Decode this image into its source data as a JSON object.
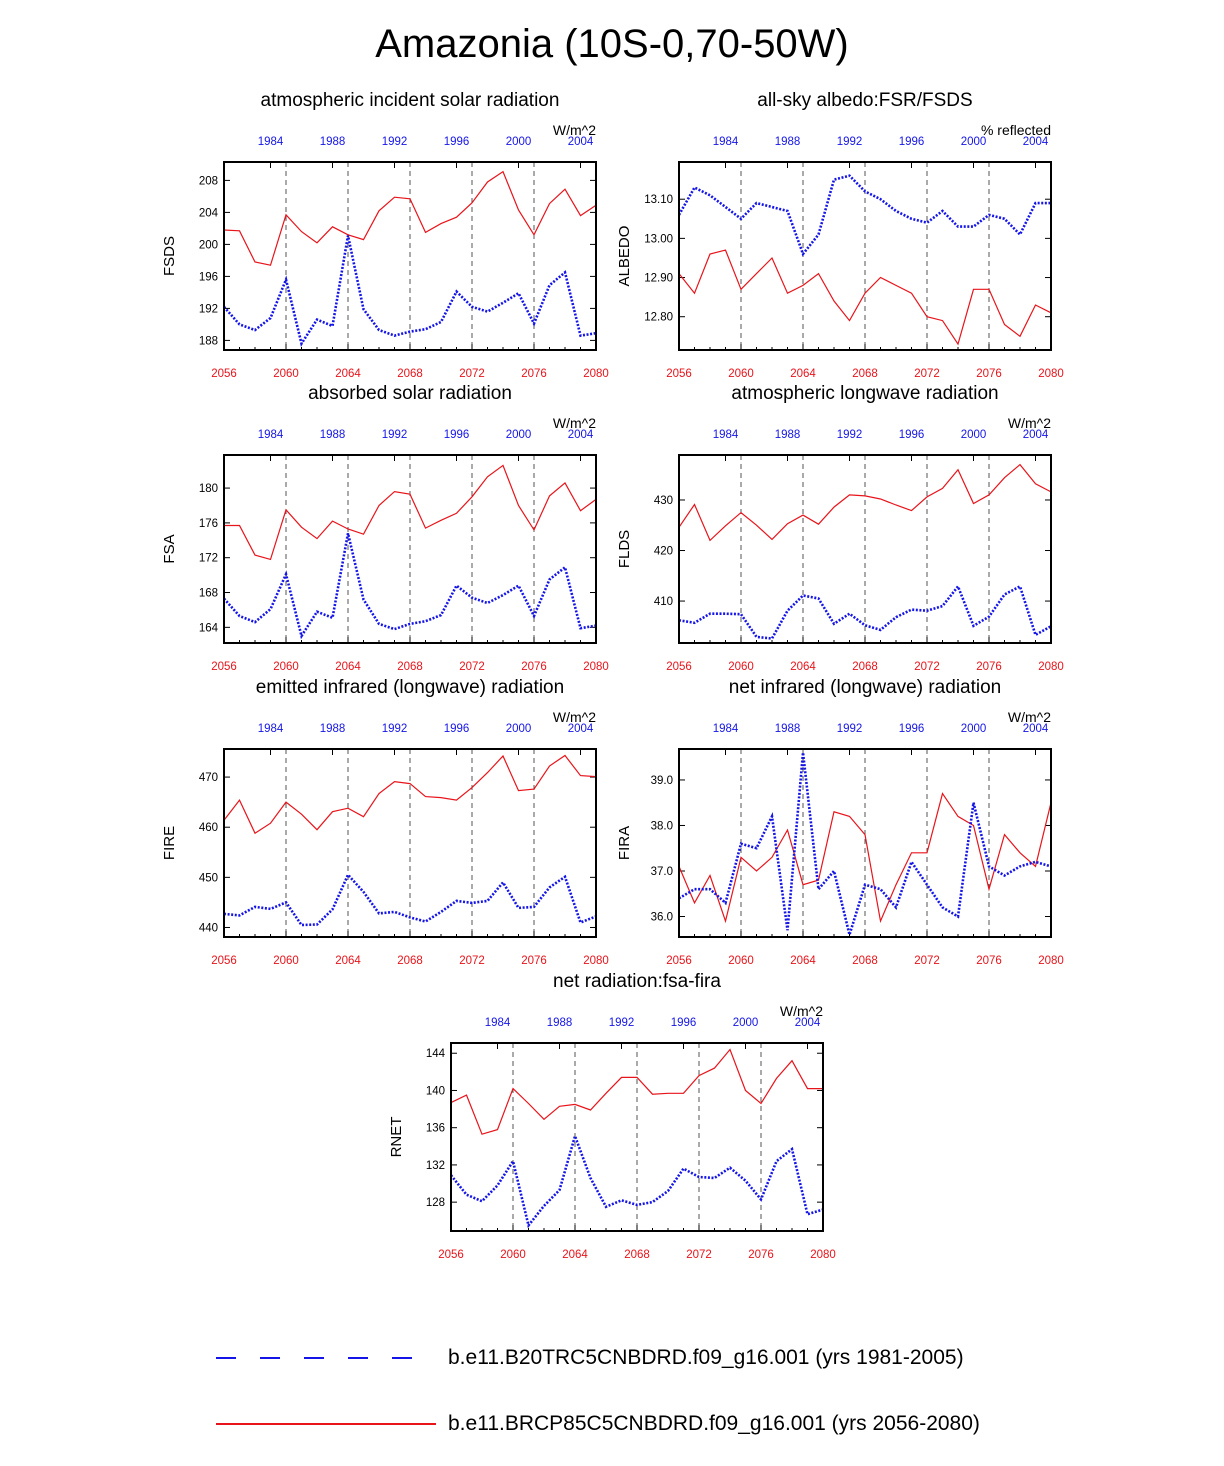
{
  "title": "Amazonia (10S-0,70-50W)",
  "colors": {
    "future": "#e8141b",
    "historical": "#1515e8",
    "axis": "#000000",
    "grid": "#555555"
  },
  "legend": [
    {
      "label": "b.e11.B20TRC5CNBDRD.f09_g16.001 (yrs 1981-2005)",
      "style": "dashed",
      "color": "#1515e8"
    },
    {
      "label": "b.e11.BRCP85C5CNBDRD.f09_g16.001 (yrs 2056-2080)",
      "style": "solid",
      "color": "#e8141b"
    }
  ],
  "chart_data": [
    {
      "type": "line",
      "title": "atmospheric incident solar radiation",
      "ylabel": "FSDS",
      "units": "W/m^2",
      "x_bottom": {
        "range": [
          2056,
          2080
        ],
        "ticks": [
          "2056",
          "2060",
          "2064",
          "2068",
          "2072",
          "2076",
          "2080"
        ]
      },
      "x_top": {
        "range": [
          1981,
          2005
        ],
        "ticks": [
          "1984",
          "1988",
          "1992",
          "1996",
          "2000",
          "2004"
        ]
      },
      "ylim": [
        186.8,
        210.3
      ],
      "yticks": [
        188,
        192,
        196,
        200,
        204,
        208
      ],
      "ytick_labels": [
        "188",
        "192",
        "196",
        "200",
        "204",
        "208"
      ],
      "series": [
        {
          "name": "b.e11.BRCP85C5CNBDRD.f09_g16.001 (yrs 2056-2080)",
          "color": "#e8141b",
          "style": "solid",
          "values": [
            201.8,
            201.7,
            197.8,
            197.4,
            203.7,
            201.6,
            200.2,
            202.2,
            201.2,
            200.6,
            204.2,
            205.9,
            205.7,
            201.5,
            202.6,
            203.4,
            205.2,
            207.8,
            209.1,
            204.3,
            201.2,
            205.1,
            206.9,
            203.6,
            204.9
          ]
        },
        {
          "name": "b.e11.B20TRC5CNBDRD.f09_g16.001 (yrs 1981-2005)",
          "color": "#1515e8",
          "style": "dashed",
          "values": [
            192.2,
            190.0,
            189.3,
            190.8,
            195.6,
            187.6,
            190.6,
            189.8,
            201.1,
            191.9,
            189.3,
            188.6,
            189.1,
            189.4,
            190.3,
            194.1,
            192.2,
            191.6,
            192.7,
            193.9,
            190.1,
            194.9,
            196.5,
            188.6,
            188.9
          ]
        }
      ]
    },
    {
      "type": "line",
      "title": "all-sky albedo:FSR/FSDS",
      "ylabel": "ALBEDO",
      "units": "% reflected",
      "x_bottom": {
        "range": [
          2056,
          2080
        ],
        "ticks": [
          "2056",
          "2060",
          "2064",
          "2068",
          "2072",
          "2076",
          "2080"
        ]
      },
      "x_top": {
        "range": [
          1981,
          2005
        ],
        "ticks": [
          "1984",
          "1988",
          "1992",
          "1996",
          "2000",
          "2004"
        ]
      },
      "ylim": [
        12.715,
        13.195
      ],
      "yticks": [
        12.8,
        12.9,
        13.0,
        13.1
      ],
      "ytick_labels": [
        "12.80",
        "12.90",
        "13.00",
        "13.10"
      ],
      "series": [
        {
          "name": "b.e11.BRCP85C5CNBDRD.f09_g16.001 (yrs 2056-2080)",
          "color": "#e8141b",
          "style": "solid",
          "values": [
            12.91,
            12.86,
            12.96,
            12.97,
            12.87,
            12.91,
            12.95,
            12.86,
            12.88,
            12.91,
            12.84,
            12.79,
            12.86,
            12.9,
            12.88,
            12.86,
            12.8,
            12.79,
            12.73,
            12.87,
            12.87,
            12.78,
            12.75,
            12.83,
            12.81
          ]
        },
        {
          "name": "b.e11.B20TRC5CNBDRD.f09_g16.001 (yrs 1981-2005)",
          "color": "#1515e8",
          "style": "dashed",
          "values": [
            13.06,
            13.13,
            13.11,
            13.08,
            13.05,
            13.09,
            13.08,
            13.07,
            12.96,
            13.01,
            13.15,
            13.16,
            13.12,
            13.1,
            13.07,
            13.05,
            13.04,
            13.07,
            13.03,
            13.03,
            13.06,
            13.05,
            13.01,
            13.09,
            13.09
          ]
        }
      ]
    },
    {
      "type": "line",
      "title": "absorbed solar radiation",
      "ylabel": "FSA",
      "units": "W/m^2",
      "x_bottom": {
        "range": [
          2056,
          2080
        ],
        "ticks": [
          "2056",
          "2060",
          "2064",
          "2068",
          "2072",
          "2076",
          "2080"
        ]
      },
      "x_top": {
        "range": [
          1981,
          2005
        ],
        "ticks": [
          "1984",
          "1988",
          "1992",
          "1996",
          "2000",
          "2004"
        ]
      },
      "ylim": [
        162.2,
        183.8
      ],
      "yticks": [
        164,
        168,
        172,
        176,
        180
      ],
      "ytick_labels": [
        "164",
        "168",
        "172",
        "176",
        "180"
      ],
      "series": [
        {
          "name": "b.e11.BRCP85C5CNBDRD.f09_g16.001 (yrs 2056-2080)",
          "color": "#e8141b",
          "style": "solid",
          "values": [
            175.7,
            175.7,
            172.3,
            171.8,
            177.5,
            175.5,
            174.2,
            176.2,
            175.3,
            174.7,
            178.0,
            179.6,
            179.3,
            175.4,
            176.3,
            177.1,
            179.0,
            181.3,
            182.6,
            178.0,
            175.2,
            179.1,
            180.6,
            177.4,
            178.7
          ]
        },
        {
          "name": "b.e11.B20TRC5CNBDRD.f09_g16.001 (yrs 1981-2005)",
          "color": "#1515e8",
          "style": "dashed",
          "values": [
            167.3,
            165.3,
            164.6,
            166.1,
            170.1,
            163.0,
            165.8,
            165.1,
            174.8,
            167.2,
            164.4,
            163.8,
            164.4,
            164.7,
            165.4,
            168.8,
            167.4,
            166.8,
            167.7,
            168.8,
            165.3,
            169.5,
            170.9,
            163.9,
            164.2
          ]
        }
      ]
    },
    {
      "type": "line",
      "title": "atmospheric longwave radiation",
      "ylabel": "FLDS",
      "units": "W/m^2",
      "x_bottom": {
        "range": [
          2056,
          2080
        ],
        "ticks": [
          "2056",
          "2060",
          "2064",
          "2068",
          "2072",
          "2076",
          "2080"
        ]
      },
      "x_top": {
        "range": [
          1981,
          2005
        ],
        "ticks": [
          "1984",
          "1988",
          "1992",
          "1996",
          "2000",
          "2004"
        ]
      },
      "ylim": [
        401.7,
        438.9
      ],
      "yticks": [
        410,
        420,
        430
      ],
      "ytick_labels": [
        "410",
        "420",
        "430"
      ],
      "series": [
        {
          "name": "b.e11.BRCP85C5CNBDRD.f09_g16.001 (yrs 2056-2080)",
          "color": "#e8141b",
          "style": "solid",
          "values": [
            424.6,
            429.1,
            422.0,
            424.9,
            427.5,
            425.0,
            422.2,
            425.3,
            427.0,
            425.2,
            428.6,
            431.0,
            430.8,
            430.2,
            429.0,
            427.9,
            430.6,
            432.3,
            436.0,
            429.3,
            431.0,
            434.4,
            437.0,
            433.2,
            431.6
          ]
        },
        {
          "name": "b.e11.B20TRC5CNBDRD.f09_g16.001 (yrs 1981-2005)",
          "color": "#1515e8",
          "style": "dashed",
          "values": [
            406.2,
            405.7,
            407.5,
            407.5,
            407.4,
            402.9,
            402.6,
            408.1,
            411.1,
            410.5,
            405.5,
            407.5,
            405.2,
            404.3,
            406.8,
            408.3,
            408.1,
            409.0,
            412.9,
            405.1,
            406.9,
            411.3,
            412.9,
            403.3,
            405.0
          ]
        }
      ]
    },
    {
      "type": "line",
      "title": "emitted infrared (longwave) radiation",
      "ylabel": "FIRE",
      "units": "W/m^2",
      "x_bottom": {
        "range": [
          2056,
          2080
        ],
        "ticks": [
          "2056",
          "2060",
          "2064",
          "2068",
          "2072",
          "2076",
          "2080"
        ]
      },
      "x_top": {
        "range": [
          1981,
          2005
        ],
        "ticks": [
          "1984",
          "1988",
          "1992",
          "1996",
          "2000",
          "2004"
        ]
      },
      "ylim": [
        438.1,
        475.6
      ],
      "yticks": [
        440,
        450,
        460,
        470
      ],
      "ytick_labels": [
        "440",
        "450",
        "460",
        "470"
      ],
      "series": [
        {
          "name": "b.e11.BRCP85C5CNBDRD.f09_g16.001 (yrs 2056-2080)",
          "color": "#e8141b",
          "style": "solid",
          "values": [
            461.4,
            465.4,
            458.8,
            460.8,
            465.0,
            462.6,
            459.5,
            463.1,
            463.8,
            462.1,
            466.7,
            469.1,
            468.7,
            466.1,
            465.9,
            465.4,
            467.9,
            470.9,
            474.2,
            467.3,
            467.6,
            472.2,
            474.3,
            470.3,
            470.1
          ]
        },
        {
          "name": "b.e11.B20TRC5CNBDRD.f09_g16.001 (yrs 1981-2005)",
          "color": "#1515e8",
          "style": "dashed",
          "values": [
            442.7,
            442.4,
            444.1,
            443.7,
            445.0,
            440.5,
            440.6,
            443.6,
            450.5,
            447.1,
            442.8,
            443.1,
            442.0,
            441.2,
            443.1,
            445.3,
            444.9,
            445.3,
            449.0,
            443.9,
            444.1,
            448.0,
            450.1,
            441.0,
            442.2
          ]
        }
      ]
    },
    {
      "type": "line",
      "title": "net infrared (longwave) radiation",
      "ylabel": "FIRA",
      "units": "W/m^2",
      "x_bottom": {
        "range": [
          2056,
          2080
        ],
        "ticks": [
          "2056",
          "2060",
          "2064",
          "2068",
          "2072",
          "2076",
          "2080"
        ]
      },
      "x_top": {
        "range": [
          1981,
          2005
        ],
        "ticks": [
          "1984",
          "1988",
          "1992",
          "1996",
          "2000",
          "2004"
        ]
      },
      "ylim": [
        35.55,
        39.68
      ],
      "yticks": [
        36.0,
        37.0,
        38.0,
        39.0
      ],
      "ytick_labels": [
        "36.0",
        "37.0",
        "38.0",
        "39.0"
      ],
      "series": [
        {
          "name": "b.e11.BRCP85C5CNBDRD.f09_g16.001 (yrs 2056-2080)",
          "color": "#e8141b",
          "style": "solid",
          "values": [
            37.1,
            36.3,
            36.9,
            35.9,
            37.3,
            37.0,
            37.3,
            37.9,
            36.7,
            36.8,
            38.3,
            38.2,
            37.8,
            35.9,
            36.7,
            37.4,
            37.4,
            38.7,
            38.2,
            38.0,
            36.6,
            37.8,
            37.4,
            37.1,
            38.5
          ]
        },
        {
          "name": "b.e11.B20TRC5CNBDRD.f09_g16.001 (yrs 1981-2005)",
          "color": "#1515e8",
          "style": "dashed",
          "values": [
            36.4,
            36.6,
            36.6,
            36.3,
            37.6,
            37.5,
            38.2,
            35.7,
            39.6,
            36.6,
            37.0,
            35.6,
            36.7,
            36.6,
            36.2,
            37.2,
            36.7,
            36.2,
            36.0,
            38.5,
            37.1,
            36.9,
            37.1,
            37.2,
            37.1
          ]
        }
      ]
    },
    {
      "type": "line",
      "title": "net radiation:fsa-fira",
      "ylabel": "RNET",
      "units": "W/m^2",
      "x_bottom": {
        "range": [
          2056,
          2080
        ],
        "ticks": [
          "2056",
          "2060",
          "2064",
          "2068",
          "2072",
          "2076",
          "2080"
        ]
      },
      "x_top": {
        "range": [
          1981,
          2005
        ],
        "ticks": [
          "1984",
          "1988",
          "1992",
          "1996",
          "2000",
          "2004"
        ]
      },
      "ylim": [
        124.9,
        145.1
      ],
      "yticks": [
        128,
        132,
        136,
        140,
        144
      ],
      "ytick_labels": [
        "128",
        "132",
        "136",
        "140",
        "144"
      ],
      "series": [
        {
          "name": "b.e11.BRCP85C5CNBDRD.f09_g16.001 (yrs 2056-2080)",
          "color": "#e8141b",
          "style": "solid",
          "values": [
            138.7,
            139.5,
            135.3,
            135.8,
            140.2,
            138.6,
            136.9,
            138.3,
            138.5,
            137.9,
            139.7,
            141.4,
            141.4,
            139.6,
            139.7,
            139.7,
            141.6,
            142.4,
            144.4,
            140.0,
            138.6,
            141.3,
            143.2,
            140.2,
            140.2
          ]
        },
        {
          "name": "b.e11.B20TRC5CNBDRD.f09_g16.001 (yrs 1981-2005)",
          "color": "#1515e8",
          "style": "dashed",
          "values": [
            130.9,
            128.8,
            128.1,
            129.8,
            132.4,
            125.5,
            127.6,
            129.3,
            135.1,
            130.6,
            127.5,
            128.2,
            127.7,
            128.0,
            129.2,
            131.6,
            130.7,
            130.6,
            131.7,
            130.3,
            128.3,
            132.4,
            133.7,
            126.7,
            127.2
          ]
        }
      ]
    }
  ]
}
